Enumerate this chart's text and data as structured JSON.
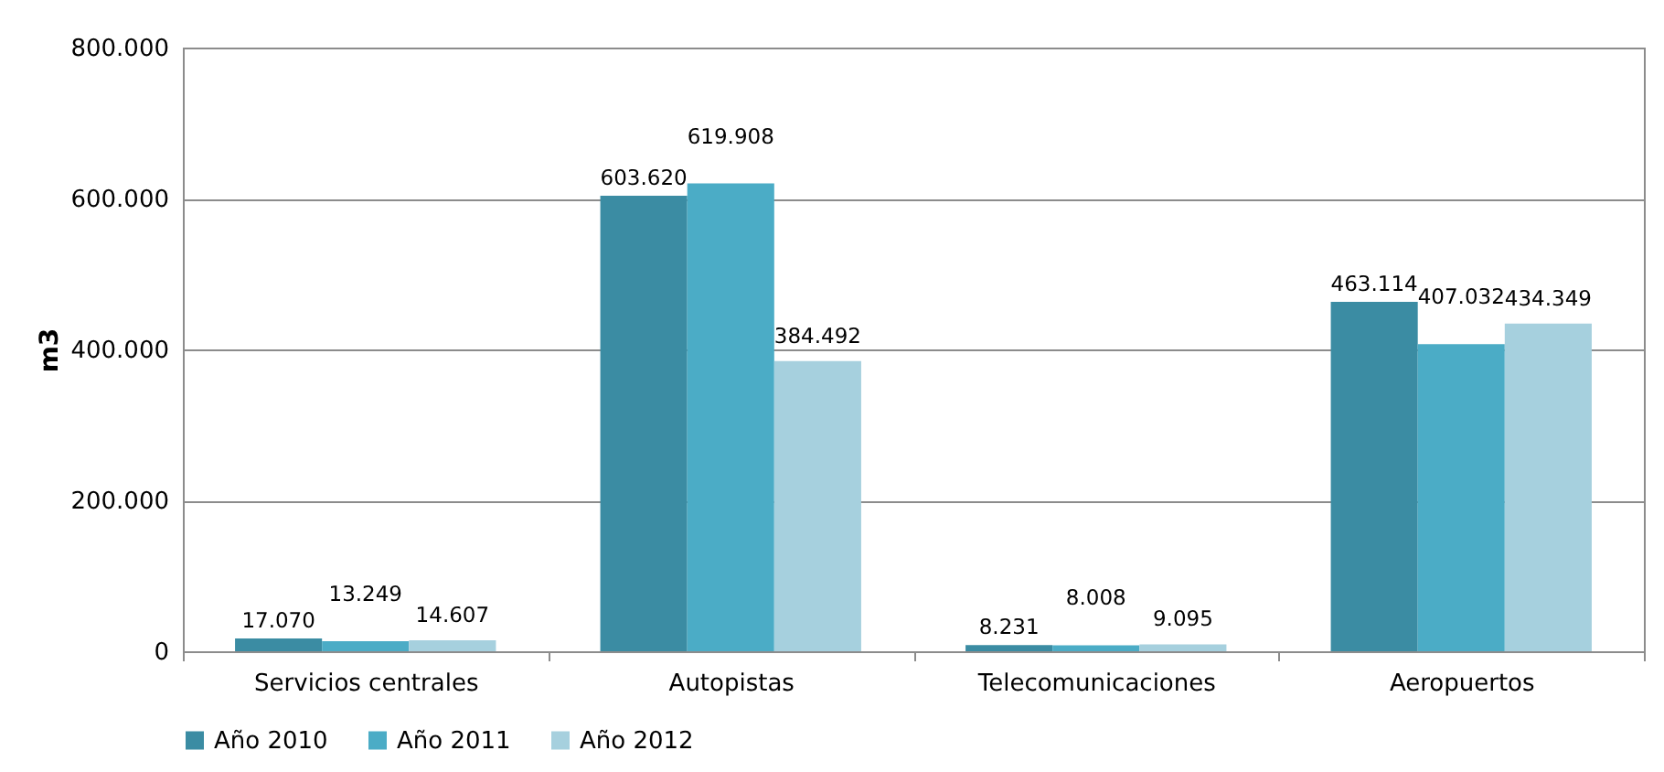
{
  "chart_data": {
    "type": "bar",
    "ylabel": "m3",
    "categories": [
      "Servicios centrales",
      "Autopistas",
      "Telecomunicaciones",
      "Aeropuertos"
    ],
    "series": [
      {
        "name": "Año 2010",
        "color": "#3b8ca3",
        "values": [
          17070,
          603620,
          8231,
          463114
        ],
        "value_labels": [
          "17.070",
          "603.620",
          "8.231",
          "463.114"
        ]
      },
      {
        "name": "Año 2011",
        "color": "#4bacc6",
        "values": [
          13249,
          619908,
          8008,
          407032
        ],
        "value_labels": [
          "13.249",
          "619.908",
          "8.008",
          "407.032"
        ]
      },
      {
        "name": "Año 2012",
        "color": "#a6d0de",
        "values": [
          14607,
          384492,
          9095,
          434349
        ],
        "value_labels": [
          "14.607",
          "384.492",
          "9.095",
          "434.349"
        ]
      }
    ],
    "ylim": [
      0,
      800000
    ],
    "yticks": [
      0,
      {
        "value": 200000,
        "label": "200.000"
      },
      {
        "value": 400000,
        "label": "400.000"
      },
      {
        "value": 600000,
        "label": "600.000"
      },
      {
        "value": 800000,
        "label": "800.000"
      }
    ],
    "grid": "y",
    "legend": "bottom"
  }
}
